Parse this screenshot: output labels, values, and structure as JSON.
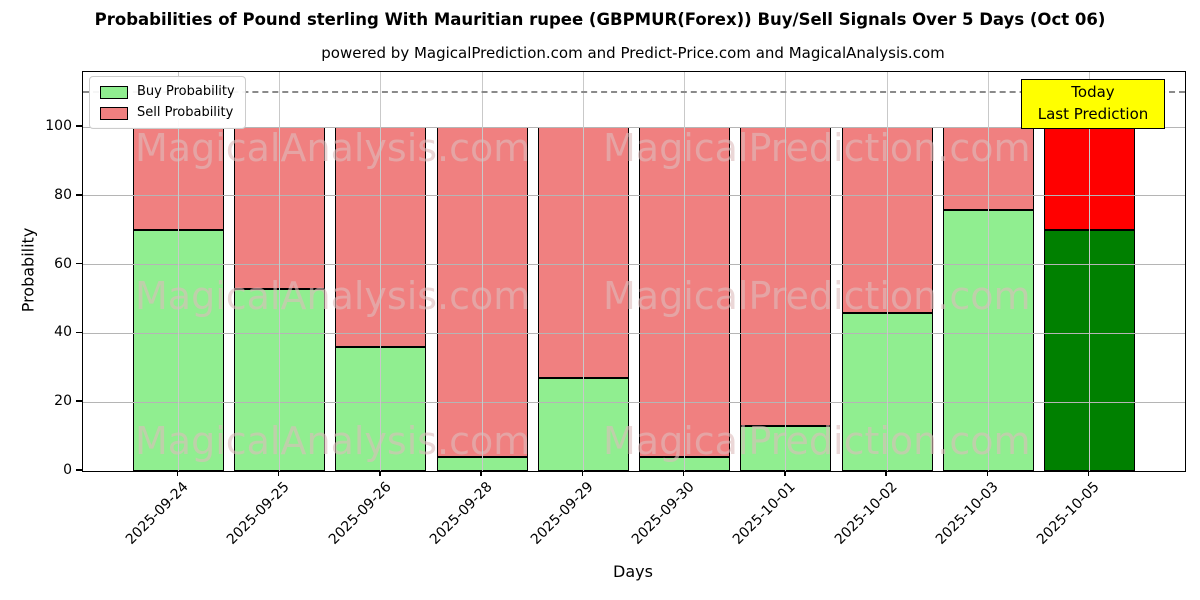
{
  "title": "Probabilities of Pound sterling With Mauritian rupee (GBPMUR(Forex)) Buy/Sell Signals Over 5 Days (Oct 06)",
  "subtitle": "powered by MagicalPrediction.com and Predict-Price.com and MagicalAnalysis.com",
  "chart_data": {
    "type": "bar",
    "stacked": true,
    "title": "Probabilities of Pound sterling With Mauritian rupee (GBPMUR(Forex)) Buy/Sell Signals Over 5 Days (Oct 06)",
    "xlabel": "Days",
    "ylabel": "Probability",
    "categories": [
      "2025-09-24",
      "2025-09-25",
      "2025-09-26",
      "2025-09-28",
      "2025-09-29",
      "2025-09-30",
      "2025-10-01",
      "2025-10-02",
      "2025-10-03",
      "2025-10-05"
    ],
    "series": [
      {
        "name": "Buy Probability",
        "color": "#90EE90",
        "final_bar_color": "#008000",
        "values": [
          70,
          53,
          36,
          4,
          27,
          4,
          13,
          46,
          76,
          70
        ]
      },
      {
        "name": "Sell Probability",
        "color": "#F08080",
        "final_bar_color": "#FF0000",
        "values": [
          30,
          47,
          64,
          96,
          73,
          96,
          87,
          54,
          24,
          30
        ]
      }
    ],
    "ylim": [
      0,
      116
    ],
    "yticks": [
      0,
      20,
      40,
      60,
      80,
      100
    ],
    "grid": true,
    "legend_position": "upper left",
    "threshold_line": {
      "y": 110,
      "style": "dashed",
      "color": "#8a8a8a"
    }
  },
  "annotation_box": {
    "lines": [
      "Today",
      "Last Prediction"
    ],
    "bg_color": "#FFFF00",
    "border_color": "#000000"
  },
  "watermark": {
    "left_text": "MagicalAnalysis.com",
    "right_text": "MagicalPrediction.com",
    "rows": 3
  }
}
